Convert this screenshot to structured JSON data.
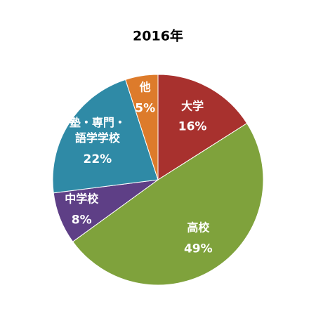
{
  "chart_data": {
    "type": "pie",
    "title": "2016年",
    "categories": [
      "大学",
      "高校",
      "中学校",
      "塾・専門・語学学校",
      "他"
    ],
    "values": [
      16,
      49,
      8,
      22,
      5
    ],
    "value_labels": [
      "16%",
      "49%",
      "8%",
      "22%",
      "5%"
    ],
    "colors": [
      "#a8312e",
      "#7fa23c",
      "#5e3f86",
      "#2f8aa6",
      "#dd7b2b"
    ]
  }
}
